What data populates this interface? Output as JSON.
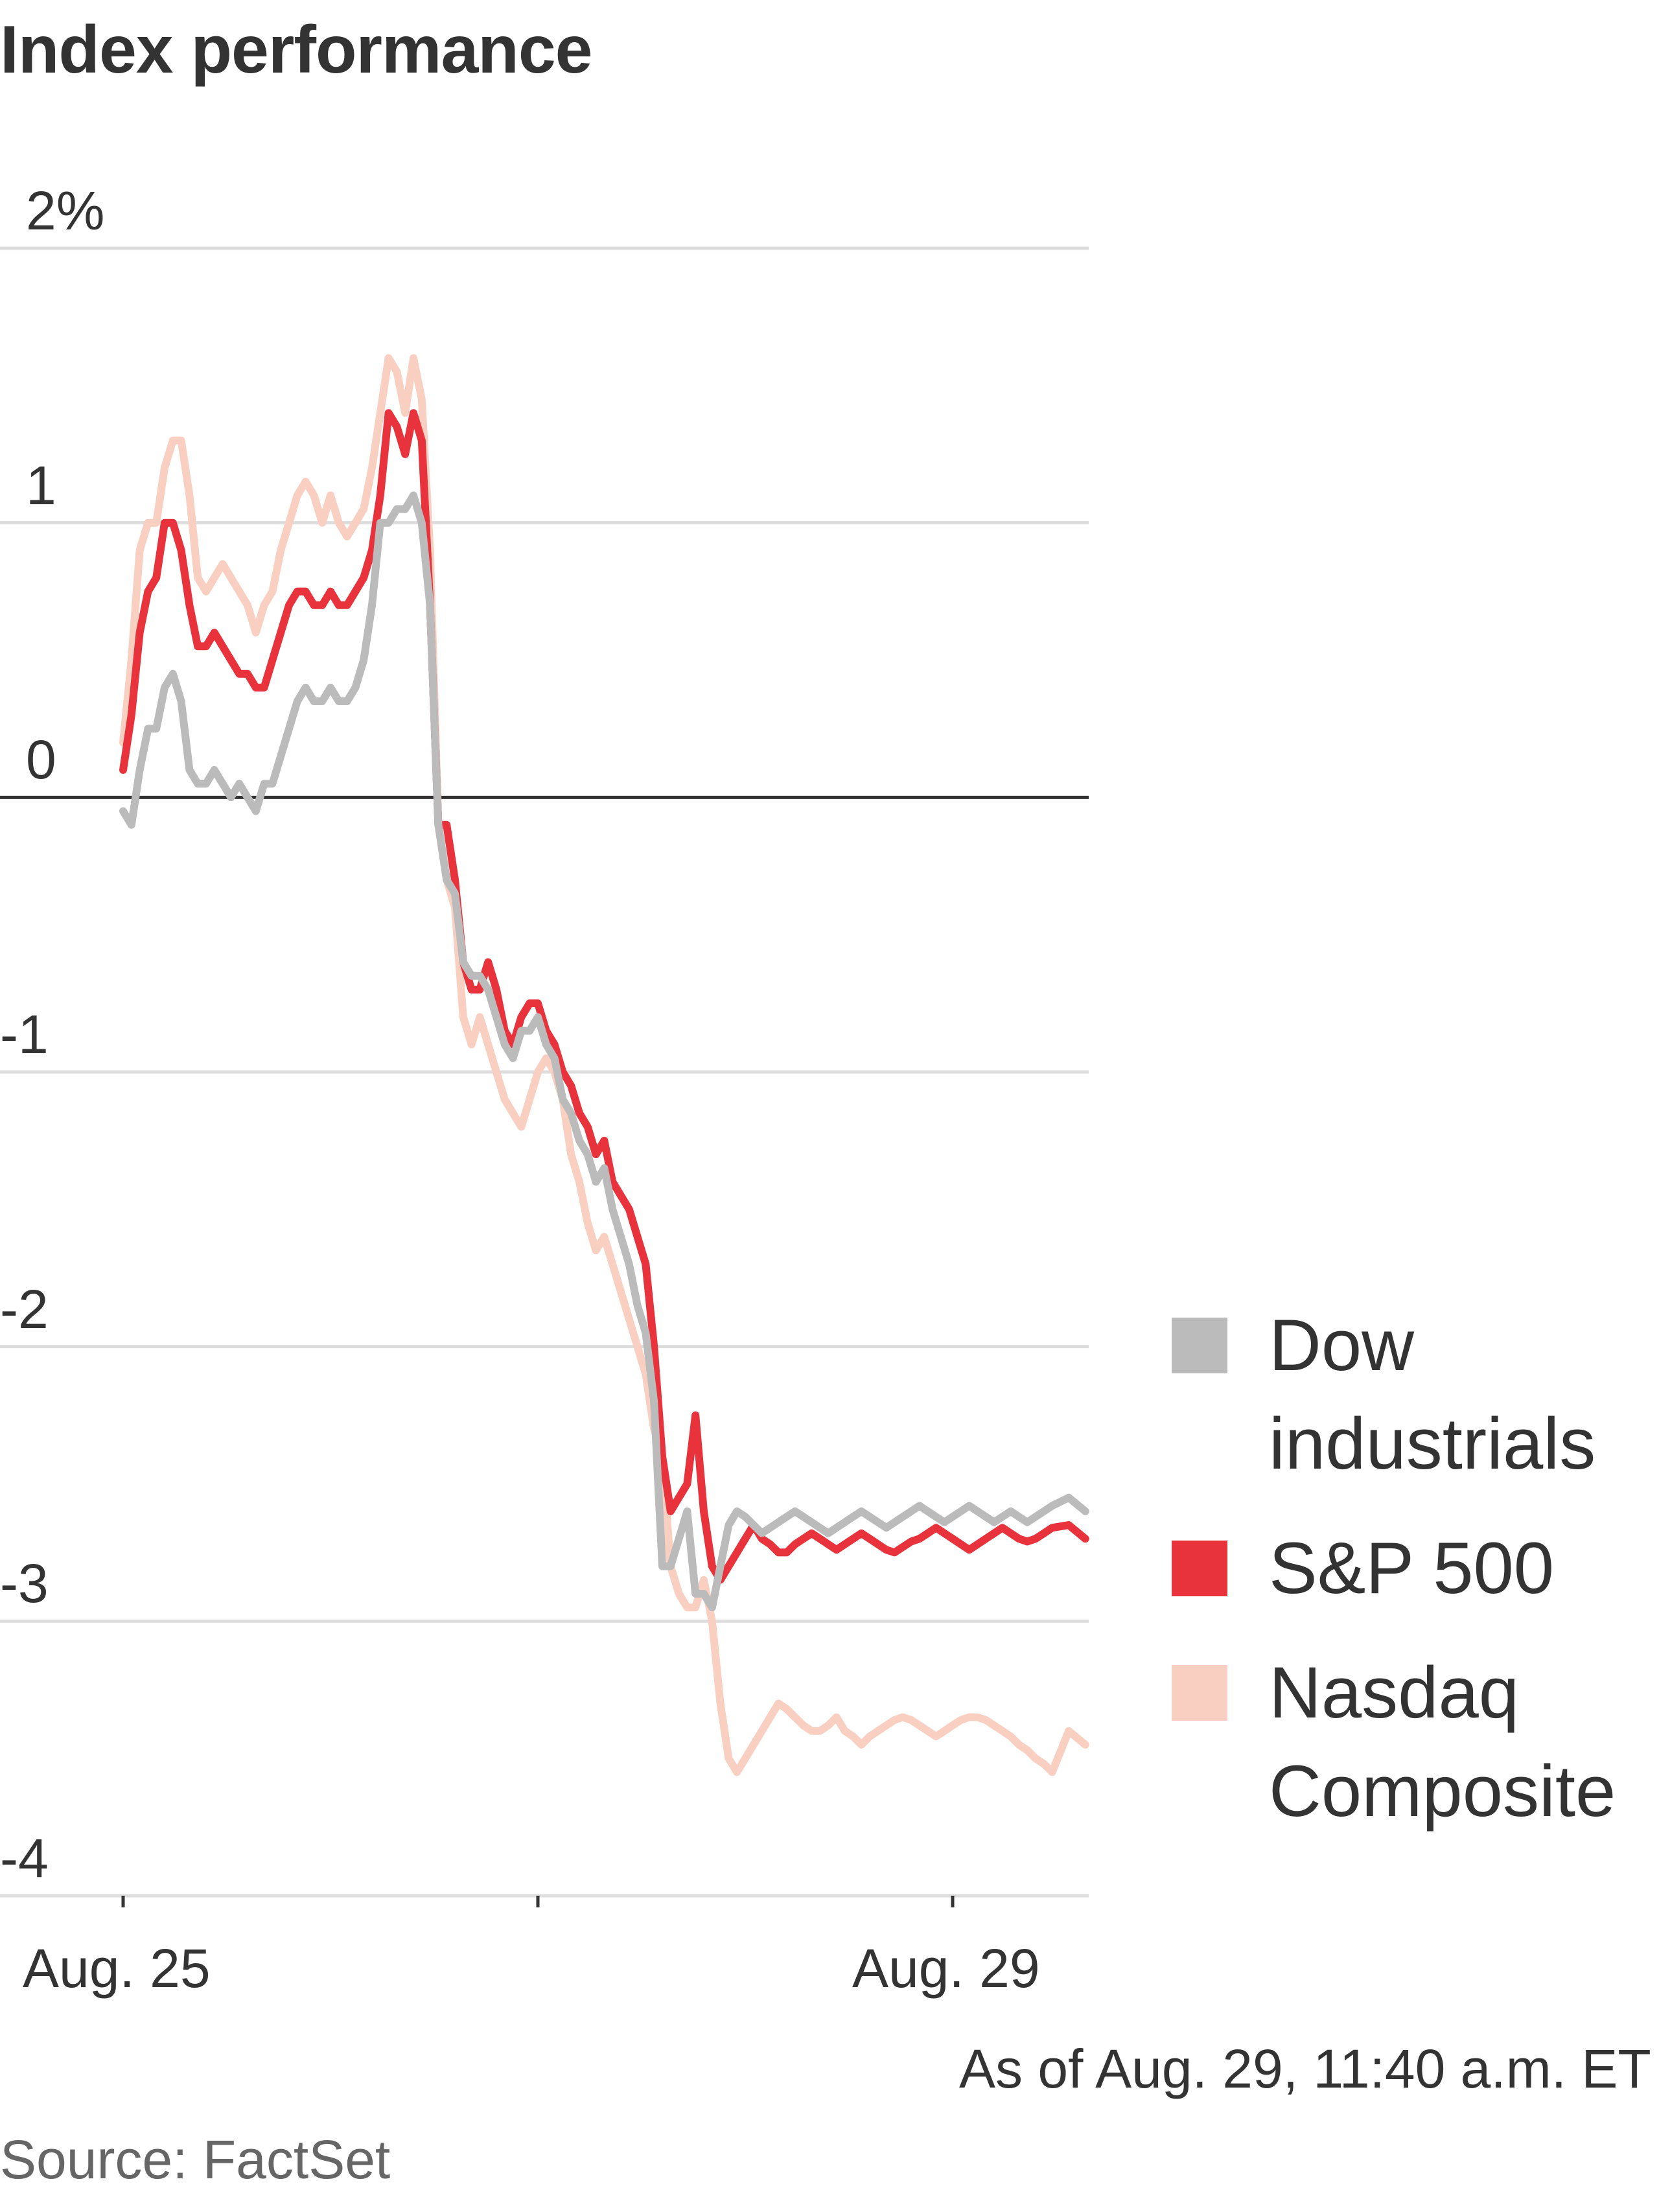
{
  "chart_data": {
    "type": "line",
    "title": "Index performance",
    "y_ticks": [
      "2%",
      "1",
      "0",
      "-1",
      "-2",
      "-3",
      "-4"
    ],
    "y_tick_values": [
      2,
      1,
      0,
      -1,
      -2,
      -3,
      -4
    ],
    "ylim": [
      -4,
      2
    ],
    "x_tick_labels": [
      "Aug. 25",
      "Aug. 29"
    ],
    "x_ticks_marked": [
      0,
      1,
      2
    ],
    "grid": true,
    "legend_placement": "right",
    "note": "As of Aug. 29, 11:40 a.m. ET",
    "source": "Source: FactSet",
    "series": [
      {
        "name": "Nasdaq Composite",
        "color": "#f9cfc2",
        "x": [
          0.0,
          0.02,
          0.04,
          0.06,
          0.08,
          0.1,
          0.12,
          0.14,
          0.16,
          0.18,
          0.2,
          0.22,
          0.24,
          0.26,
          0.28,
          0.3,
          0.32,
          0.34,
          0.36,
          0.38,
          0.4,
          0.42,
          0.44,
          0.46,
          0.48,
          0.5,
          0.52,
          0.54,
          0.56,
          0.58,
          0.6,
          0.62,
          0.64,
          0.66,
          0.68,
          0.7,
          0.72,
          0.74,
          0.76,
          0.78,
          0.8,
          0.82,
          0.84,
          0.86,
          0.88,
          0.9,
          0.92,
          0.94,
          0.96,
          0.98,
          1.0,
          1.02,
          1.04,
          1.06,
          1.08,
          1.1,
          1.12,
          1.14,
          1.16,
          1.18,
          1.2,
          1.22,
          1.24,
          1.26,
          1.28,
          1.3,
          1.32,
          1.34,
          1.36,
          1.38,
          1.4,
          1.42,
          1.44,
          1.46,
          1.48,
          1.5,
          1.52,
          1.54,
          1.56,
          1.58,
          1.6,
          1.62,
          1.64,
          1.66,
          1.68,
          1.7,
          1.72,
          1.74,
          1.76,
          1.78,
          1.8,
          1.82,
          1.84,
          1.86,
          1.88,
          1.9,
          1.92,
          1.94,
          1.96,
          1.98,
          2.0,
          2.02,
          2.04,
          2.06,
          2.08,
          2.1,
          2.12,
          2.14,
          2.16,
          2.18,
          2.2,
          2.22,
          2.24,
          2.28,
          2.32
        ],
        "values": [
          0.2,
          0.5,
          0.9,
          1.0,
          1.0,
          1.2,
          1.3,
          1.3,
          1.1,
          0.8,
          0.75,
          0.8,
          0.85,
          0.8,
          0.75,
          0.7,
          0.6,
          0.7,
          0.75,
          0.9,
          1.0,
          1.1,
          1.15,
          1.1,
          1.0,
          1.1,
          1.0,
          0.95,
          1.0,
          1.05,
          1.2,
          1.4,
          1.6,
          1.55,
          1.4,
          1.6,
          1.45,
          0.9,
          -0.1,
          -0.3,
          -0.4,
          -0.8,
          -0.9,
          -0.8,
          -0.9,
          -1.0,
          -1.1,
          -1.15,
          -1.2,
          -1.1,
          -1.0,
          -0.95,
          -1.0,
          -1.1,
          -1.3,
          -1.4,
          -1.55,
          -1.65,
          -1.6,
          -1.7,
          -1.8,
          -1.9,
          -2.0,
          -2.1,
          -2.3,
          -2.4,
          -2.8,
          -2.9,
          -2.95,
          -2.95,
          -2.85,
          -3.0,
          -3.3,
          -3.5,
          -3.55,
          -3.5,
          -3.45,
          -3.4,
          -3.35,
          -3.3,
          -3.32,
          -3.35,
          -3.38,
          -3.4,
          -3.4,
          -3.38,
          -3.35,
          -3.4,
          -3.42,
          -3.45,
          -3.42,
          -3.4,
          -3.38,
          -3.36,
          -3.35,
          -3.36,
          -3.38,
          -3.4,
          -3.42,
          -3.4,
          -3.38,
          -3.36,
          -3.35,
          -3.35,
          -3.36,
          -3.38,
          -3.4,
          -3.42,
          -3.45,
          -3.47,
          -3.5,
          -3.52,
          -3.55,
          -3.4,
          -3.45
        ]
      },
      {
        "name": "S&P 500",
        "color": "#e8323c",
        "x": [
          0.0,
          0.02,
          0.04,
          0.06,
          0.08,
          0.1,
          0.12,
          0.14,
          0.16,
          0.18,
          0.2,
          0.22,
          0.24,
          0.26,
          0.28,
          0.3,
          0.32,
          0.34,
          0.36,
          0.38,
          0.4,
          0.42,
          0.44,
          0.46,
          0.48,
          0.5,
          0.52,
          0.54,
          0.56,
          0.58,
          0.6,
          0.62,
          0.64,
          0.66,
          0.68,
          0.7,
          0.72,
          0.74,
          0.76,
          0.78,
          0.8,
          0.82,
          0.84,
          0.86,
          0.88,
          0.9,
          0.92,
          0.94,
          0.96,
          0.98,
          1.0,
          1.02,
          1.04,
          1.06,
          1.08,
          1.1,
          1.12,
          1.14,
          1.16,
          1.18,
          1.2,
          1.22,
          1.24,
          1.26,
          1.28,
          1.3,
          1.32,
          1.34,
          1.36,
          1.38,
          1.4,
          1.42,
          1.44,
          1.46,
          1.48,
          1.5,
          1.52,
          1.54,
          1.56,
          1.58,
          1.6,
          1.62,
          1.64,
          1.66,
          1.68,
          1.7,
          1.72,
          1.74,
          1.76,
          1.78,
          1.8,
          1.82,
          1.84,
          1.86,
          1.88,
          1.9,
          1.92,
          1.94,
          1.96,
          1.98,
          2.0,
          2.02,
          2.04,
          2.06,
          2.08,
          2.1,
          2.12,
          2.14,
          2.16,
          2.18,
          2.2,
          2.22,
          2.24,
          2.28,
          2.32
        ],
        "values": [
          0.1,
          0.3,
          0.6,
          0.75,
          0.8,
          1.0,
          1.0,
          0.9,
          0.7,
          0.55,
          0.55,
          0.6,
          0.55,
          0.5,
          0.45,
          0.45,
          0.4,
          0.4,
          0.5,
          0.6,
          0.7,
          0.75,
          0.75,
          0.7,
          0.7,
          0.75,
          0.7,
          0.7,
          0.75,
          0.8,
          0.9,
          1.1,
          1.4,
          1.35,
          1.25,
          1.4,
          1.3,
          0.7,
          -0.1,
          -0.1,
          -0.3,
          -0.6,
          -0.7,
          -0.7,
          -0.6,
          -0.7,
          -0.85,
          -0.9,
          -0.8,
          -0.75,
          -0.75,
          -0.85,
          -0.9,
          -1.0,
          -1.05,
          -1.15,
          -1.2,
          -1.3,
          -1.25,
          -1.4,
          -1.45,
          -1.5,
          -1.6,
          -1.7,
          -2.0,
          -2.4,
          -2.6,
          -2.55,
          -2.5,
          -2.25,
          -2.6,
          -2.8,
          -2.85,
          -2.8,
          -2.75,
          -2.7,
          -2.65,
          -2.7,
          -2.72,
          -2.75,
          -2.75,
          -2.72,
          -2.7,
          -2.68,
          -2.7,
          -2.72,
          -2.74,
          -2.72,
          -2.7,
          -2.68,
          -2.7,
          -2.72,
          -2.74,
          -2.75,
          -2.73,
          -2.71,
          -2.7,
          -2.68,
          -2.66,
          -2.68,
          -2.7,
          -2.72,
          -2.74,
          -2.72,
          -2.7,
          -2.68,
          -2.66,
          -2.68,
          -2.7,
          -2.71,
          -2.7,
          -2.68,
          -2.66,
          -2.65,
          -2.7
        ]
      },
      {
        "name": "Dow industrials",
        "color": "#bbbbbb",
        "x": [
          0.0,
          0.02,
          0.04,
          0.06,
          0.08,
          0.1,
          0.12,
          0.14,
          0.16,
          0.18,
          0.2,
          0.22,
          0.24,
          0.26,
          0.28,
          0.3,
          0.32,
          0.34,
          0.36,
          0.38,
          0.4,
          0.42,
          0.44,
          0.46,
          0.48,
          0.5,
          0.52,
          0.54,
          0.56,
          0.58,
          0.6,
          0.62,
          0.64,
          0.66,
          0.68,
          0.7,
          0.72,
          0.74,
          0.76,
          0.78,
          0.8,
          0.82,
          0.84,
          0.86,
          0.88,
          0.9,
          0.92,
          0.94,
          0.96,
          0.98,
          1.0,
          1.02,
          1.04,
          1.06,
          1.08,
          1.1,
          1.12,
          1.14,
          1.16,
          1.18,
          1.2,
          1.22,
          1.24,
          1.26,
          1.28,
          1.3,
          1.32,
          1.34,
          1.36,
          1.38,
          1.4,
          1.42,
          1.44,
          1.46,
          1.48,
          1.5,
          1.52,
          1.54,
          1.56,
          1.58,
          1.6,
          1.62,
          1.64,
          1.66,
          1.68,
          1.7,
          1.72,
          1.74,
          1.76,
          1.78,
          1.8,
          1.82,
          1.84,
          1.86,
          1.88,
          1.9,
          1.92,
          1.94,
          1.96,
          1.98,
          2.0,
          2.02,
          2.04,
          2.06,
          2.08,
          2.1,
          2.12,
          2.14,
          2.16,
          2.18,
          2.2,
          2.22,
          2.24,
          2.28,
          2.32
        ],
        "values": [
          -0.05,
          -0.1,
          0.1,
          0.25,
          0.25,
          0.4,
          0.45,
          0.35,
          0.1,
          0.05,
          0.05,
          0.1,
          0.05,
          0.0,
          0.05,
          0.0,
          -0.05,
          0.05,
          0.05,
          0.15,
          0.25,
          0.35,
          0.4,
          0.35,
          0.35,
          0.4,
          0.35,
          0.35,
          0.4,
          0.5,
          0.7,
          1.0,
          1.0,
          1.05,
          1.05,
          1.1,
          1.0,
          0.7,
          -0.1,
          -0.3,
          -0.35,
          -0.6,
          -0.65,
          -0.65,
          -0.7,
          -0.8,
          -0.9,
          -0.95,
          -0.85,
          -0.85,
          -0.8,
          -0.9,
          -0.95,
          -1.1,
          -1.15,
          -1.25,
          -1.3,
          -1.4,
          -1.35,
          -1.5,
          -1.6,
          -1.7,
          -1.85,
          -1.95,
          -2.2,
          -2.8,
          -2.8,
          -2.7,
          -2.6,
          -2.9,
          -2.9,
          -2.95,
          -2.8,
          -2.65,
          -2.6,
          -2.62,
          -2.65,
          -2.68,
          -2.66,
          -2.64,
          -2.62,
          -2.6,
          -2.62,
          -2.64,
          -2.66,
          -2.68,
          -2.66,
          -2.64,
          -2.62,
          -2.6,
          -2.62,
          -2.64,
          -2.66,
          -2.64,
          -2.62,
          -2.6,
          -2.58,
          -2.6,
          -2.62,
          -2.64,
          -2.62,
          -2.6,
          -2.58,
          -2.6,
          -2.62,
          -2.64,
          -2.62,
          -2.6,
          -2.62,
          -2.64,
          -2.62,
          -2.6,
          -2.58,
          -2.55,
          -2.6
        ]
      }
    ]
  },
  "legend": [
    {
      "label": "Dow industrials",
      "color": "#bbbbbb"
    },
    {
      "label": "S&P 500",
      "color": "#e8323c"
    },
    {
      "label": "Nasdaq Composite",
      "color": "#f9cfc2"
    }
  ]
}
